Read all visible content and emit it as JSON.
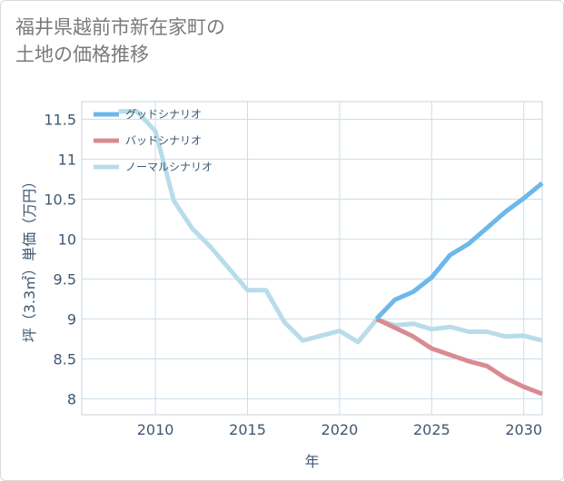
{
  "title": {
    "line1": "福井県越前市新在家町の",
    "line2": "土地の価格推移"
  },
  "chart_data": {
    "type": "line",
    "xlabel": "年",
    "ylabel": "坪（3.3㎡）単価（万円）",
    "xlim": [
      2006,
      2031
    ],
    "ylim": [
      7.8,
      11.72
    ],
    "xticks": [
      2010,
      2015,
      2020,
      2025,
      2030
    ],
    "yticks": [
      8,
      8.5,
      9,
      9.5,
      10,
      10.5,
      11,
      11.5
    ],
    "ytick_labels": [
      "8",
      "8.5",
      "9",
      "9.5",
      "10",
      "10.5",
      "11",
      "11.5"
    ],
    "grid": true,
    "legend_position": "top-left",
    "series": [
      {
        "name": "グッドシナリオ",
        "color": "#6cb8ec",
        "x": [
          2022,
          2023,
          2024,
          2025,
          2026,
          2027,
          2028,
          2029,
          2030,
          2031
        ],
        "y": [
          9.0,
          9.24,
          9.34,
          9.52,
          9.8,
          9.94,
          10.14,
          10.34,
          10.51,
          10.7
        ]
      },
      {
        "name": "バッドシナリオ",
        "color": "#d98b92",
        "x": [
          2022,
          2023,
          2024,
          2025,
          2026,
          2027,
          2028,
          2029,
          2030,
          2031
        ],
        "y": [
          9.0,
          8.89,
          8.78,
          8.63,
          8.55,
          8.47,
          8.41,
          8.26,
          8.15,
          8.06
        ]
      },
      {
        "name": "ノーマルシナリオ",
        "color": "#b8dcea",
        "x": [
          2008,
          2009,
          2010,
          2011,
          2012,
          2013,
          2014,
          2015,
          2016,
          2017,
          2018,
          2019,
          2020,
          2021,
          2022,
          2023,
          2024,
          2025,
          2026,
          2027,
          2028,
          2029,
          2030,
          2031
        ],
        "y": [
          11.6,
          11.6,
          11.35,
          10.48,
          10.13,
          9.9,
          9.63,
          9.36,
          9.36,
          8.96,
          8.73,
          8.79,
          8.85,
          8.71,
          8.99,
          8.92,
          8.94,
          8.87,
          8.9,
          8.84,
          8.84,
          8.78,
          8.79,
          8.73
        ]
      }
    ]
  }
}
